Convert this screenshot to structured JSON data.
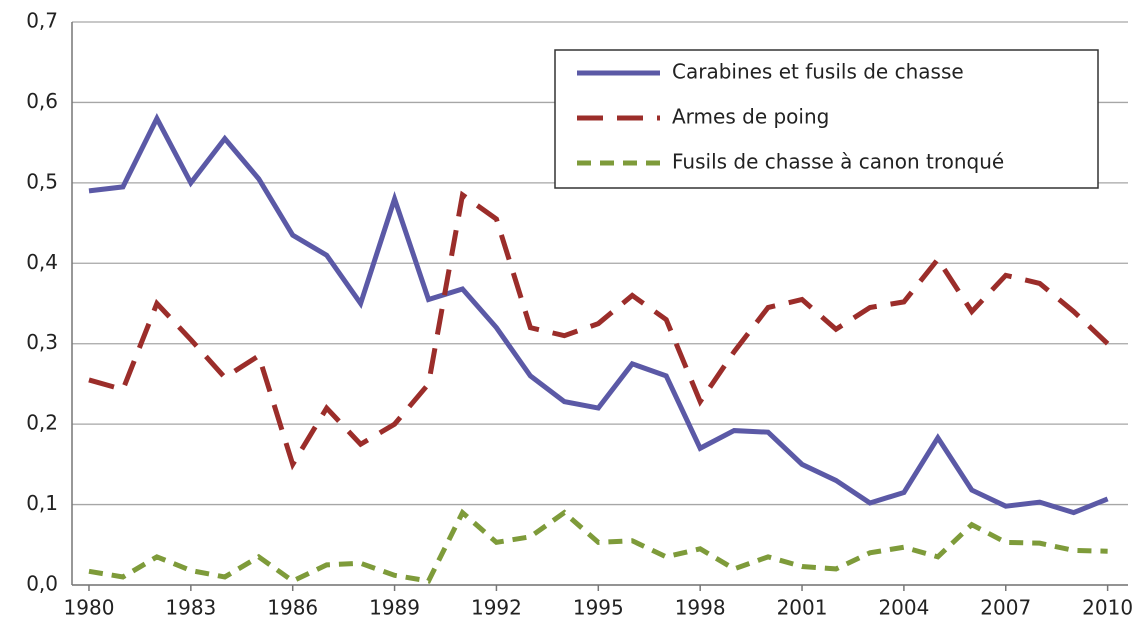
{
  "chart_data": {
    "type": "line",
    "x": [
      1980,
      1981,
      1982,
      1983,
      1984,
      1985,
      1986,
      1987,
      1988,
      1989,
      1990,
      1991,
      1992,
      1993,
      1994,
      1995,
      1996,
      1997,
      1998,
      1999,
      2000,
      2001,
      2002,
      2003,
      2004,
      2005,
      2006,
      2007,
      2008,
      2009,
      2010
    ],
    "series": [
      {
        "name": "Carabines et fusils de chasse",
        "color": "#5b59a6",
        "line_style": "solid",
        "values": [
          0.49,
          0.495,
          0.58,
          0.5,
          0.555,
          0.505,
          0.435,
          0.41,
          0.35,
          0.48,
          0.355,
          0.368,
          0.32,
          0.26,
          0.228,
          0.22,
          0.275,
          0.26,
          0.17,
          0.192,
          0.19,
          0.15,
          0.13,
          0.102,
          0.115,
          0.183,
          0.118,
          0.098,
          0.103,
          0.09,
          0.107
        ]
      },
      {
        "name": "Armes de poing",
        "color": "#9b2d2a",
        "line_style": "dashed",
        "values": [
          0.255,
          0.243,
          0.35,
          0.305,
          0.258,
          0.285,
          0.15,
          0.22,
          0.175,
          0.2,
          0.25,
          0.485,
          0.455,
          0.32,
          0.31,
          0.325,
          0.36,
          0.33,
          0.228,
          0.29,
          0.345,
          0.355,
          0.318,
          0.345,
          0.352,
          0.405,
          0.34,
          0.385,
          0.375,
          0.34,
          0.3
        ]
      },
      {
        "name": "Fusils de chasse à canon tronqué",
        "color": "#7e9b3a",
        "line_style": "short-dashed",
        "values": [
          0.017,
          0.01,
          0.035,
          0.018,
          0.01,
          0.035,
          0.005,
          0.025,
          0.027,
          0.012,
          0.005,
          0.09,
          0.053,
          0.06,
          0.09,
          0.053,
          0.055,
          0.035,
          0.045,
          0.02,
          0.035,
          0.023,
          0.02,
          0.04,
          0.047,
          0.035,
          0.075,
          0.053,
          0.052,
          0.043,
          0.042
        ]
      }
    ],
    "xlim": [
      1979.5,
      2010.6
    ],
    "xticks": [
      1980,
      1983,
      1986,
      1989,
      1992,
      1995,
      1998,
      2001,
      2004,
      2007,
      2010
    ],
    "ylim": [
      0,
      0.7
    ],
    "yticks": [
      {
        "value": 0,
        "label": "0,0"
      },
      {
        "value": 0.1,
        "label": "0,1"
      },
      {
        "value": 0.2,
        "label": "0,2"
      },
      {
        "value": 0.3,
        "label": "0,3"
      },
      {
        "value": 0.4,
        "label": "0,4"
      },
      {
        "value": 0.5,
        "label": "0,5"
      },
      {
        "value": 0.6,
        "label": "0,6"
      },
      {
        "value": 0.7,
        "label": "0,7"
      }
    ],
    "grid": true,
    "legend": "top-right"
  }
}
